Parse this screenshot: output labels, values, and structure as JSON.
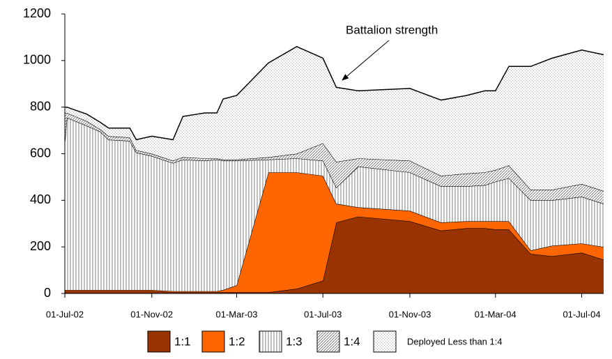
{
  "chart_data": {
    "type": "stacked_area",
    "annotation": "Battalion strength",
    "x": [
      "2002-07-01",
      "2002-07-04",
      "2002-08-01",
      "2002-08-20",
      "2002-09-01",
      "2002-10-01",
      "2002-10-10",
      "2002-11-01",
      "2002-12-01",
      "2002-12-15",
      "2003-01-15",
      "2003-02-01",
      "2003-02-10",
      "2003-03-01",
      "2003-04-15",
      "2003-05-25",
      "2003-07-01",
      "2003-07-20",
      "2003-08-20",
      "2003-11-01",
      "2003-12-15",
      "2004-01-20",
      "2004-02-15",
      "2004-03-01",
      "2004-03-20",
      "2004-04-20",
      "2004-05-20",
      "2004-07-01",
      "2004-08-01"
    ],
    "series": [
      {
        "name": "1:1",
        "color": "#993300",
        "fill": "solid",
        "values": [
          10,
          10,
          10,
          10,
          10,
          10,
          10,
          10,
          5,
          5,
          5,
          5,
          5,
          5,
          5,
          20,
          55,
          305,
          330,
          310,
          270,
          280,
          280,
          275,
          275,
          170,
          160,
          175,
          145
        ]
      },
      {
        "name": "1:2",
        "color": "#ff6600",
        "fill": "solid",
        "values": [
          5,
          5,
          5,
          5,
          5,
          5,
          5,
          5,
          5,
          5,
          5,
          5,
          10,
          30,
          515,
          500,
          450,
          80,
          40,
          45,
          35,
          30,
          30,
          35,
          35,
          15,
          45,
          40,
          55
        ]
      },
      {
        "name": "1:3",
        "color": "#808080",
        "fill": "vertical",
        "values": [
          635,
          740,
          705,
          680,
          645,
          640,
          590,
          575,
          550,
          565,
          560,
          565,
          555,
          535,
          55,
          60,
          65,
          70,
          175,
          165,
          155,
          150,
          155,
          170,
          185,
          215,
          195,
          200,
          185
        ]
      },
      {
        "name": "1:4",
        "color": "#808080",
        "fill": "diagonal",
        "values": [
          125,
          20,
          20,
          10,
          15,
          15,
          10,
          10,
          10,
          10,
          10,
          5,
          5,
          5,
          10,
          20,
          75,
          110,
          35,
          50,
          45,
          55,
          55,
          50,
          55,
          45,
          45,
          55,
          55
        ]
      },
      {
        "name": "Deployed Less than 1:4",
        "color": "#a0a0a0",
        "fill": "dots",
        "values": [
          25,
          25,
          30,
          30,
          35,
          40,
          45,
          75,
          90,
          175,
          195,
          195,
          260,
          275,
          405,
          460,
          365,
          320,
          290,
          310,
          325,
          335,
          350,
          340,
          425,
          530,
          565,
          575,
          585
        ]
      }
    ],
    "xlim": [
      "2002-07-01",
      "2004-08-01"
    ],
    "xticks": [
      {
        "value": "2002-07-01",
        "label": "01-Jul-02"
      },
      {
        "value": "2002-11-01",
        "label": "01-Nov-02"
      },
      {
        "value": "2003-03-01",
        "label": "01-Mar-03"
      },
      {
        "value": "2003-07-01",
        "label": "01-Jul-03"
      },
      {
        "value": "2003-11-01",
        "label": "01-Nov-03"
      },
      {
        "value": "2004-03-01",
        "label": "01-Mar-04"
      },
      {
        "value": "2004-07-01",
        "label": "01-Jul-04"
      }
    ],
    "ylim": [
      0,
      1200
    ],
    "yticks": [
      0,
      200,
      400,
      600,
      800,
      1000,
      1200
    ]
  }
}
